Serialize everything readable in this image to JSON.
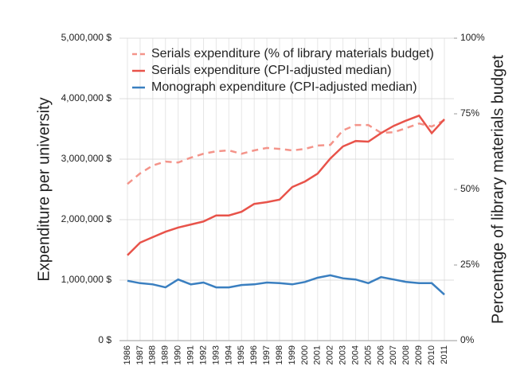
{
  "chart_data": {
    "type": "line",
    "y_label": "Expenditure per university",
    "y2_label": "Percentage of library materials budget",
    "categories": [
      "1986",
      "1987",
      "1988",
      "1989",
      "1990",
      "1991",
      "1992",
      "1993",
      "1994",
      "1995",
      "1996",
      "1997",
      "1998",
      "1999",
      "2000",
      "2001",
      "2002",
      "2003",
      "2004",
      "2005",
      "2006",
      "2007",
      "2008",
      "2009",
      "2010",
      "2011"
    ],
    "ylim": [
      0,
      5000000
    ],
    "yticks": [
      {
        "value": 0,
        "label": "0 $"
      },
      {
        "value": 1000000,
        "label": "1,000,000 $"
      },
      {
        "value": 2000000,
        "label": "2,000,000 $"
      },
      {
        "value": 3000000,
        "label": "3,000,000 $"
      },
      {
        "value": 4000000,
        "label": "4,000,000 $"
      },
      {
        "value": 5000000,
        "label": "5,000,000 $"
      }
    ],
    "y2lim": [
      0,
      100
    ],
    "y2ticks": [
      {
        "value": 0,
        "label": "0%"
      },
      {
        "value": 25,
        "label": "25%"
      },
      {
        "value": 50,
        "label": "50%"
      },
      {
        "value": 75,
        "label": "75%"
      },
      {
        "value": 100,
        "label": "100%"
      }
    ],
    "grid": true,
    "legend": "upper left",
    "series": [
      {
        "name": "Serials expenditure (% of library materials budget)",
        "color": "#f4948a",
        "dashed": true,
        "axis": "y2",
        "values": [
          51.8,
          55.3,
          57.9,
          59.2,
          58.9,
          60.5,
          61.8,
          62.6,
          62.9,
          61.8,
          62.9,
          63.7,
          63.4,
          62.9,
          63.4,
          64.5,
          64.7,
          69.5,
          71.3,
          71.3,
          68.7,
          68.9,
          70.3,
          71.8,
          70.8,
          72.9
        ]
      },
      {
        "name": "Serials expenditure (CPI-adjusted median)",
        "color": "#e8534a",
        "values": [
          1410000,
          1620000,
          1710000,
          1800000,
          1870000,
          1920000,
          1970000,
          2070000,
          2070000,
          2130000,
          2260000,
          2290000,
          2330000,
          2540000,
          2630000,
          2760000,
          3010000,
          3210000,
          3300000,
          3290000,
          3430000,
          3550000,
          3640000,
          3720000,
          3430000,
          3660000
        ]
      },
      {
        "name": "Monograph expenditure (CPI-adjusted median)",
        "color": "#3a7fc0",
        "values": [
          990000,
          950000,
          930000,
          880000,
          1010000,
          930000,
          960000,
          880000,
          880000,
          920000,
          930000,
          960000,
          950000,
          930000,
          970000,
          1040000,
          1080000,
          1030000,
          1010000,
          950000,
          1050000,
          1010000,
          970000,
          950000,
          950000,
          760000
        ]
      }
    ]
  }
}
